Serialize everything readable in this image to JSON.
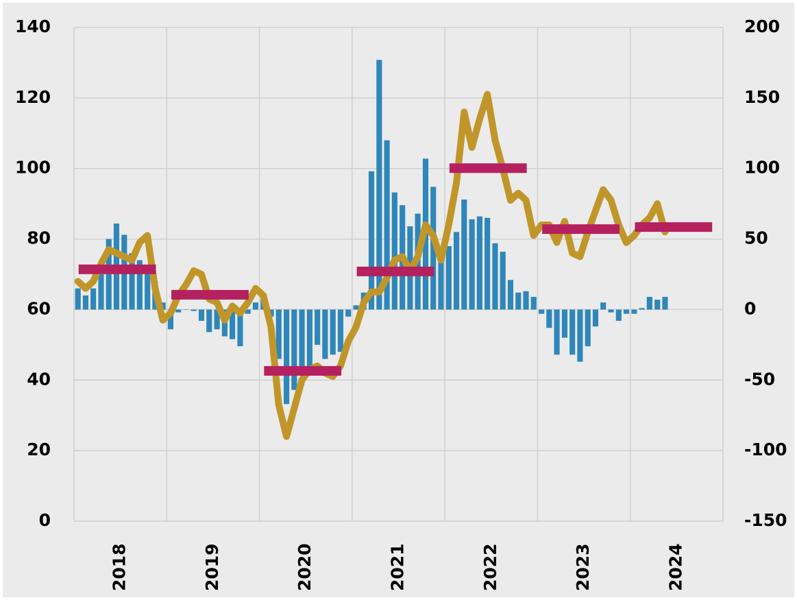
{
  "chart_data": {
    "type": "bar-line",
    "xlim": [
      2018,
      2025
    ],
    "xgrid": [
      2018,
      2019,
      2020,
      2021,
      2022,
      2023,
      2024,
      2025
    ],
    "xticks": [
      {
        "value": 2018.5,
        "label": "2018"
      },
      {
        "value": 2019.5,
        "label": "2019"
      },
      {
        "value": 2020.5,
        "label": "2020"
      },
      {
        "value": 2021.5,
        "label": "2021"
      },
      {
        "value": 2022.5,
        "label": "2022"
      },
      {
        "value": 2023.5,
        "label": "2023"
      },
      {
        "value": 2024.5,
        "label": "2024"
      }
    ],
    "ylim": [
      0,
      140
    ],
    "yticks": [
      0,
      20,
      40,
      60,
      80,
      100,
      120,
      140
    ],
    "y2lim": [
      -150,
      200
    ],
    "y2ticks": [
      -150,
      -100,
      -50,
      0,
      50,
      100,
      150,
      200
    ],
    "grid": true,
    "x": [
      2018.042,
      2018.125,
      2018.208,
      2018.292,
      2018.375,
      2018.458,
      2018.542,
      2018.625,
      2018.708,
      2018.792,
      2018.875,
      2018.958,
      2019.042,
      2019.125,
      2019.208,
      2019.292,
      2019.375,
      2019.458,
      2019.542,
      2019.625,
      2019.708,
      2019.792,
      2019.875,
      2019.958,
      2020.042,
      2020.125,
      2020.208,
      2020.292,
      2020.375,
      2020.458,
      2020.542,
      2020.625,
      2020.708,
      2020.792,
      2020.875,
      2020.958,
      2021.042,
      2021.125,
      2021.208,
      2021.292,
      2021.375,
      2021.458,
      2021.542,
      2021.625,
      2021.708,
      2021.792,
      2021.875,
      2021.958,
      2022.042,
      2022.125,
      2022.208,
      2022.292,
      2022.375,
      2022.458,
      2022.542,
      2022.625,
      2022.708,
      2022.792,
      2022.875,
      2022.958,
      2023.042,
      2023.125,
      2023.208,
      2023.292,
      2023.375,
      2023.458,
      2023.542,
      2023.625,
      2023.708,
      2023.792,
      2023.875,
      2023.958,
      2024.042,
      2024.125,
      2024.208,
      2024.292,
      2024.375
    ],
    "series": [
      {
        "type": "bar",
        "axis": "y2",
        "color": "#2e86b9",
        "values": [
          15,
          10,
          15,
          25,
          50,
          61,
          53,
          40,
          35,
          30,
          20,
          5,
          -14,
          -2,
          0,
          -1,
          -8,
          -16,
          -14,
          -19,
          -21,
          -26,
          -3,
          5,
          8,
          -5,
          -35,
          -67,
          -57,
          -47,
          -42,
          -25,
          -35,
          -32,
          -30,
          -5,
          3,
          12,
          98,
          177,
          120,
          83,
          74,
          59,
          68,
          107,
          87,
          35,
          45,
          55,
          78,
          64,
          66,
          65,
          47,
          41,
          21,
          12,
          13,
          9,
          -3,
          -13,
          -32,
          -20,
          -32,
          -37,
          -26,
          -12,
          5,
          -2,
          -8,
          -3,
          -3,
          1,
          9,
          7,
          9
        ]
      },
      {
        "type": "line",
        "axis": "y",
        "color": "#c0962a",
        "values": [
          68,
          66,
          68,
          73,
          77,
          76,
          75,
          74,
          79,
          81,
          66,
          57,
          59,
          64,
          67,
          71,
          70,
          63,
          62,
          57,
          61,
          59,
          62,
          66,
          64,
          55,
          33,
          24,
          32,
          40,
          43,
          44,
          42,
          41,
          44,
          51,
          55,
          62,
          65,
          65,
          69,
          74,
          75,
          71,
          75,
          84,
          81,
          74,
          84,
          96,
          116,
          106,
          114,
          121,
          108,
          100,
          91,
          93,
          91,
          81,
          84,
          84,
          79,
          85,
          76,
          75,
          82,
          88,
          94,
          91,
          84,
          79,
          81,
          84,
          86,
          90,
          82
        ]
      }
    ],
    "averages": {
      "color": "#b5205e",
      "x": [
        2018,
        2019,
        2020,
        2021,
        2022,
        2023,
        2024
      ],
      "values": [
        71.4,
        64.2,
        42.6,
        70.8,
        100.1,
        82.8,
        83.4
      ]
    }
  }
}
